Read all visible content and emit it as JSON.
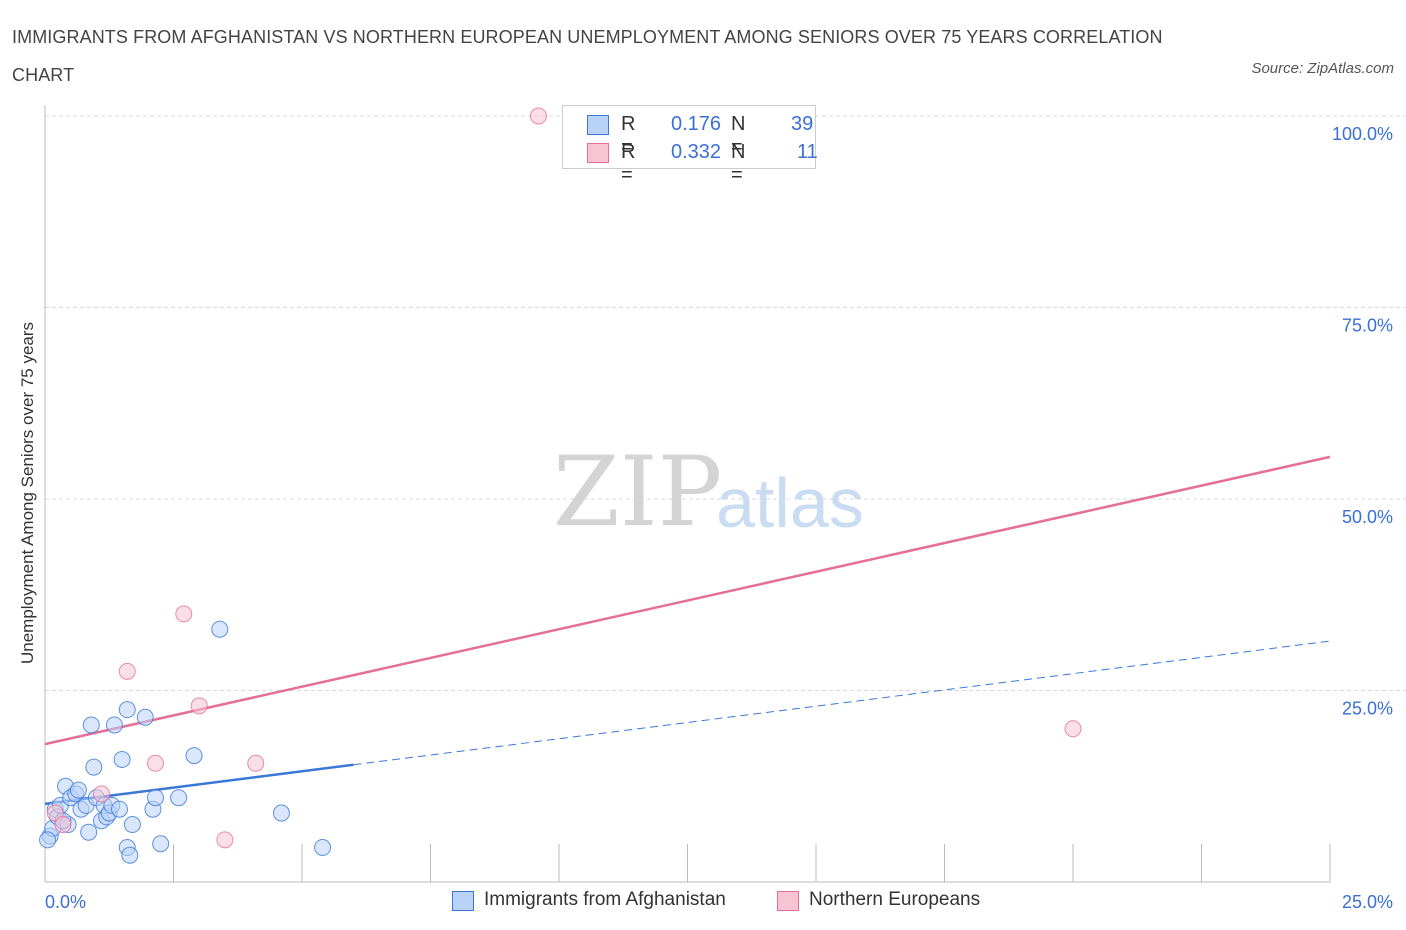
{
  "title": "IMMIGRANTS FROM AFGHANISTAN VS NORTHERN EUROPEAN UNEMPLOYMENT AMONG SENIORS OVER 75 YEARS CORRELATION CHART",
  "source": "Source: ZipAtlas.com",
  "watermark": {
    "zip": "ZIP",
    "atlas": "atlas"
  },
  "colors": {
    "blue": "#3a78d8",
    "blue_fill": "#b9d2f7",
    "pink": "#e56f98",
    "pink_fill": "#f7c4d4",
    "axis_text": "#3a6fd8",
    "grid": "#d9d9d9"
  },
  "legend": {
    "rows": [
      {
        "r_label": "R =",
        "r_value": "0.176",
        "n_label": "N =",
        "n_value": "39"
      },
      {
        "r_label": "R =",
        "r_value": "0.332",
        "n_label": "N =",
        "n_value": "11"
      }
    ]
  },
  "bottom_legend": {
    "blue": "Immigrants from Afghanistan",
    "pink": "Northern Europeans"
  },
  "chart_data": {
    "type": "scatter",
    "xlabel": "",
    "ylabel": "Unemployment Among Seniors over 75 years",
    "xlim": [
      0,
      25
    ],
    "ylim": [
      0,
      100
    ],
    "x_tick_labels": [
      "0.0%",
      "25.0%"
    ],
    "y_tick_labels": [
      {
        "value": 25,
        "label": "25.0%"
      },
      {
        "value": 50,
        "label": "50.0%"
      },
      {
        "value": 75,
        "label": "75.0%"
      },
      {
        "value": 100,
        "label": "100.0%"
      }
    ],
    "series": [
      {
        "name": "Immigrants from Afghanistan",
        "color": "blue",
        "points": [
          [
            0.1,
            6.0
          ],
          [
            0.15,
            7.0
          ],
          [
            0.2,
            9.5
          ],
          [
            0.25,
            8.5
          ],
          [
            0.3,
            10.0
          ],
          [
            0.4,
            12.5
          ],
          [
            0.45,
            7.5
          ],
          [
            0.5,
            11.0
          ],
          [
            0.6,
            11.5
          ],
          [
            0.65,
            12.0
          ],
          [
            0.7,
            9.5
          ],
          [
            0.8,
            10.0
          ],
          [
            0.85,
            6.5
          ],
          [
            0.9,
            20.5
          ],
          [
            0.95,
            15.0
          ],
          [
            1.0,
            11.0
          ],
          [
            1.1,
            8.0
          ],
          [
            1.15,
            10.0
          ],
          [
            1.2,
            8.5
          ],
          [
            1.25,
            9.0
          ],
          [
            1.3,
            10.0
          ],
          [
            1.35,
            20.5
          ],
          [
            1.45,
            9.5
          ],
          [
            1.5,
            16.0
          ],
          [
            1.6,
            22.5
          ],
          [
            1.6,
            4.5
          ],
          [
            1.65,
            3.5
          ],
          [
            1.7,
            7.5
          ],
          [
            1.95,
            21.5
          ],
          [
            2.1,
            9.5
          ],
          [
            2.15,
            11.0
          ],
          [
            2.25,
            5.0
          ],
          [
            2.6,
            11.0
          ],
          [
            2.9,
            16.5
          ],
          [
            3.4,
            33.0
          ],
          [
            4.6,
            9.0
          ],
          [
            5.4,
            4.5
          ],
          [
            0.05,
            5.5
          ],
          [
            0.35,
            8.0
          ]
        ]
      },
      {
        "name": "Northern Europeans",
        "color": "pink",
        "points": [
          [
            0.2,
            9.0
          ],
          [
            0.35,
            7.5
          ],
          [
            1.1,
            11.5
          ],
          [
            1.6,
            27.5
          ],
          [
            2.15,
            15.5
          ],
          [
            2.7,
            35.0
          ],
          [
            3.0,
            23.0
          ],
          [
            3.5,
            5.5
          ],
          [
            4.1,
            15.5
          ],
          [
            9.6,
            100.0
          ],
          [
            20.0,
            20.0
          ]
        ]
      }
    ],
    "trend_lines": [
      {
        "series": "Immigrants from Afghanistan",
        "color": "blue",
        "x_solid": [
          0,
          6
        ],
        "x_dashed": [
          6,
          25
        ],
        "intercept": 10.2,
        "slope": 0.85
      },
      {
        "series": "Northern Europeans",
        "color": "pink",
        "x": [
          0,
          25
        ],
        "intercept": 18.0,
        "slope": 1.5
      }
    ]
  }
}
